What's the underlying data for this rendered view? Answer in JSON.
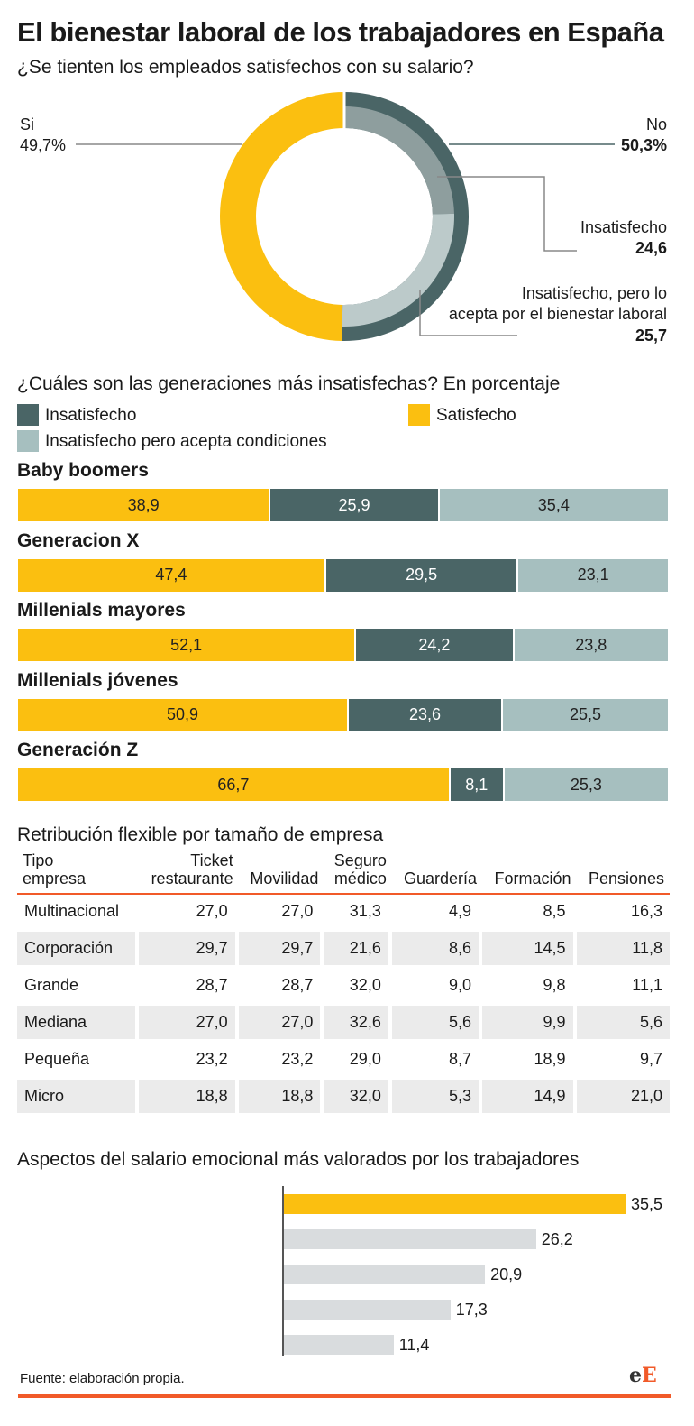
{
  "title": "El bienestar laboral de los trabajadores en España",
  "donut": {
    "question": "¿Se tienten los empleados satisfechos con su salario?",
    "si_label": "Si",
    "si_value": "49,7%",
    "no_label": "No",
    "no_value": "50,3%",
    "insat_label": "Insatisfecho",
    "insat_value": "24,6",
    "acc_label_1": "Insatisfecho, pero lo",
    "acc_label_2": "acepta por el bienestar laboral",
    "acc_value": "25,7"
  },
  "generations": {
    "question": "¿Cuáles son las generaciones más insatisfechas? En porcentaje",
    "legend_insat": "Insatisfecho",
    "legend_sat": "Satisfecho",
    "legend_acc": "Insatisfecho pero acepta condiciones"
  },
  "table": {
    "title": "Retribución flexible por tamaño de empresa",
    "headers": [
      [
        "Tipo",
        "empresa"
      ],
      [
        "Ticket",
        "restaurante"
      ],
      [
        "",
        "Movilidad"
      ],
      [
        "Seguro",
        "médico"
      ],
      [
        "",
        "Guardería"
      ],
      [
        "",
        "Formación"
      ],
      [
        "",
        "Pensiones"
      ]
    ],
    "rows": [
      [
        "Multinacional",
        "27,0",
        "27,0",
        "31,3",
        "4,9",
        "8,5",
        "16,3"
      ],
      [
        "Corporación",
        "29,7",
        "29,7",
        "21,6",
        "8,6",
        "14,5",
        "11,8"
      ],
      [
        "Grande",
        "28,7",
        "28,7",
        "32,0",
        "9,0",
        "9,8",
        "11,1"
      ],
      [
        "Mediana",
        "27,0",
        "27,0",
        "32,6",
        "5,6",
        "9,9",
        "5,6"
      ],
      [
        "Pequeña",
        "23,2",
        "23,2",
        "29,0",
        "8,7",
        "18,9",
        "9,7"
      ],
      [
        "Micro",
        "18,8",
        "18,8",
        "32,0",
        "5,3",
        "14,9",
        "21,0"
      ]
    ]
  },
  "emotional": {
    "title": "Aspectos del salario emocional más valorados por los trabajadores"
  },
  "source": "Fuente: elaboración propia.",
  "logo_e1": "e",
  "logo_e2": "E",
  "colors": {
    "satisfecho": "#fbbf10",
    "insatisfecho": "#4a6566",
    "acepta": "#a6bfbf",
    "accent": "#f15a29",
    "grey_bar": "#d9dcde"
  },
  "chart_data": [
    {
      "type": "pie",
      "title": "¿Se tienten los empleados satisfechos con su salario?",
      "slices": [
        {
          "name": "Si",
          "value": 49.7
        },
        {
          "name": "No",
          "value": 50.3,
          "children": [
            {
              "name": "Insatisfecho",
              "value": 24.6
            },
            {
              "name": "Insatisfecho, pero lo acepta por el bienestar laboral",
              "value": 25.7
            }
          ]
        }
      ]
    },
    {
      "type": "bar",
      "stacked": true,
      "orientation": "horizontal",
      "title": "¿Cuáles son las generaciones más insatisfechas? En porcentaje",
      "categories": [
        "Baby boomers",
        "Generacion X",
        "Millenials mayores",
        "Millenials jóvenes",
        "Generación Z"
      ],
      "series": [
        {
          "name": "Satisfecho",
          "values": [
            38.9,
            47.4,
            52.1,
            50.9,
            66.7
          ],
          "labels": [
            "38,9",
            "47,4",
            "52,1",
            "50,9",
            "66,7"
          ]
        },
        {
          "name": "Insatisfecho",
          "values": [
            25.9,
            29.5,
            24.2,
            23.6,
            8.1
          ],
          "labels": [
            "25,9",
            "29,5",
            "24,2",
            "23,6",
            "8,1"
          ]
        },
        {
          "name": "Insatisfecho pero acepta condiciones",
          "values": [
            35.4,
            23.1,
            23.8,
            25.5,
            25.3
          ],
          "labels": [
            "35,4",
            "23,1",
            "23,8",
            "25,5",
            "25,3"
          ]
        }
      ],
      "legend": "top"
    },
    {
      "type": "bar",
      "orientation": "horizontal",
      "title": "Aspectos del salario emocional más valorados por los trabajadores",
      "values": [
        35.5,
        26.2,
        20.9,
        17.3,
        11.4
      ],
      "labels": [
        "35,5",
        "26,2",
        "20,9",
        "17,3",
        "11,4"
      ],
      "xlim": [
        0,
        38
      ],
      "highlight_index": 0
    }
  ]
}
